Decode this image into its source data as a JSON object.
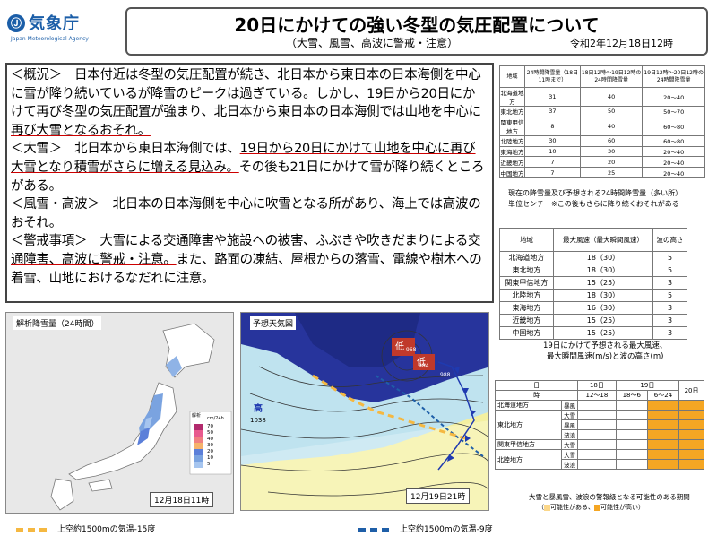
{
  "header": {
    "agency_jp": "気象庁",
    "agency_en": "Japan Meteorological Agency",
    "title": "20日にかけての強い冬型の気圧配置について",
    "subtitle": "（大雪、風雪、高波に警戒・注意）",
    "date": "令和2年12月18日12時"
  },
  "summary": {
    "gaikyo_label": "＜概況＞",
    "gaikyo_text": "日本付近は冬型の気圧配置が続き、北日本から東日本の日本海側を中心に雪が降り続いているが降雪のピークは過ぎている。しかし、",
    "gaikyo_u": "19日から20日にかけて再び冬型の気圧配置が強まり、北日本から東日本の日本海側では山地を中心に再び大雪となるおそれ。",
    "taisetsu_label": "＜大雪＞",
    "taisetsu_text": "北日本から東日本海側では、",
    "taisetsu_u": "19日から20日にかけて山地を中心に再び大雪となり積雪がさらに増える見込み。",
    "taisetsu_rest": "その後も21日にかけて雪が降り続くところがある。",
    "fusetsu_label": "＜風雪・高波＞",
    "fusetsu_text": "北日本の日本海側を中心に吹雪となる所があり、海上では高波のおそれ。",
    "keikai_label": "＜警戒事項＞",
    "keikai_u": "大雪による交通障害や施設への被害、ふぶきや吹きだまりによる交通障害、高波に警戒・注意。",
    "keikai_rest": "また、路面の凍結、屋根からの落雪、電線や樹木への着雪、山地におけるなだれに注意。"
  },
  "snow_table": {
    "headers": [
      "地域",
      "24時間降雪量（18日11時まで）",
      "18日12時～19日12時の24時間降雪量",
      "19日12時～20日12時の24時間降雪量"
    ],
    "rows": [
      [
        "北海道地方",
        "31",
        "40",
        "20～40"
      ],
      [
        "東北地方",
        "37",
        "50",
        "50～70"
      ],
      [
        "関東甲信地方",
        "8",
        "40",
        "60～80"
      ],
      [
        "北陸地方",
        "30",
        "60",
        "60～80"
      ],
      [
        "東海地方",
        "10",
        "30",
        "20～40"
      ],
      [
        "近畿地方",
        "7",
        "20",
        "20～40"
      ],
      [
        "中国地方",
        "7",
        "25",
        "20～40"
      ]
    ],
    "caption1": "現在の降雪量及び予想される24時間降雪量（多い所）",
    "caption2": "単位センチ　※この後もさらに降り続くおそれがある"
  },
  "wind_table": {
    "headers": [
      "地域",
      "最大風速（最大瞬間風速）",
      "波の高さ"
    ],
    "rows": [
      [
        "北海道地方",
        "18（30）",
        "5"
      ],
      [
        "東北地方",
        "18（30）",
        "5"
      ],
      [
        "関東甲信地方",
        "15（25）",
        "3"
      ],
      [
        "北陸地方",
        "18（30）",
        "5"
      ],
      [
        "東海地方",
        "16（30）",
        "3"
      ],
      [
        "近畿地方",
        "15（25）",
        "3"
      ],
      [
        "中国地方",
        "15（25）",
        "3"
      ]
    ],
    "caption1": "19日にかけて予想される最大風速、",
    "caption2": "最大瞬間風速(m/s)と波の高さ(m)"
  },
  "period_table": {
    "h_day": "日",
    "h_d18": "18日",
    "h_d19": "19日",
    "h_d20": "20日",
    "h_time": "時",
    "h_t1": "12～18",
    "h_t2": "18～6",
    "h_t3": "6～24",
    "r1": "北海道地方",
    "r2": "東北地方",
    "r3": "関東甲信地方",
    "r4": "北陸地方",
    "s_bofu": "暴風",
    "s_taisetsu": "大雪",
    "s_namari": "波浪",
    "caption": "大雪と暴風雪、波浪の警報級となる可能性のある期間",
    "legend_low": "可能性がある、",
    "legend_high": "可能性が高い"
  },
  "map1": {
    "title": "解析降雪量（24時間）",
    "stamp": "12月18日11時",
    "legend_title": "解析",
    "legend_unit": "cm/24h",
    "legend_values": [
      "70",
      "50",
      "40",
      "30",
      "20",
      "10",
      "5"
    ]
  },
  "map2": {
    "title": "予想天気図",
    "stamp": "12月19日21時",
    "p1": "968",
    "p2": "984",
    "p3": "988",
    "p4": "1038",
    "low1": "低",
    "low2": "低",
    "high1": "高"
  },
  "bottom_legend": {
    "yellow": "上空約1500mの気温-15度",
    "blue": "上空約1500mの気温-9度"
  },
  "colors": {
    "title_border": "#555555",
    "orange": "#f5a623",
    "blue": "#1f5fa8",
    "underline": "#cc0000"
  }
}
